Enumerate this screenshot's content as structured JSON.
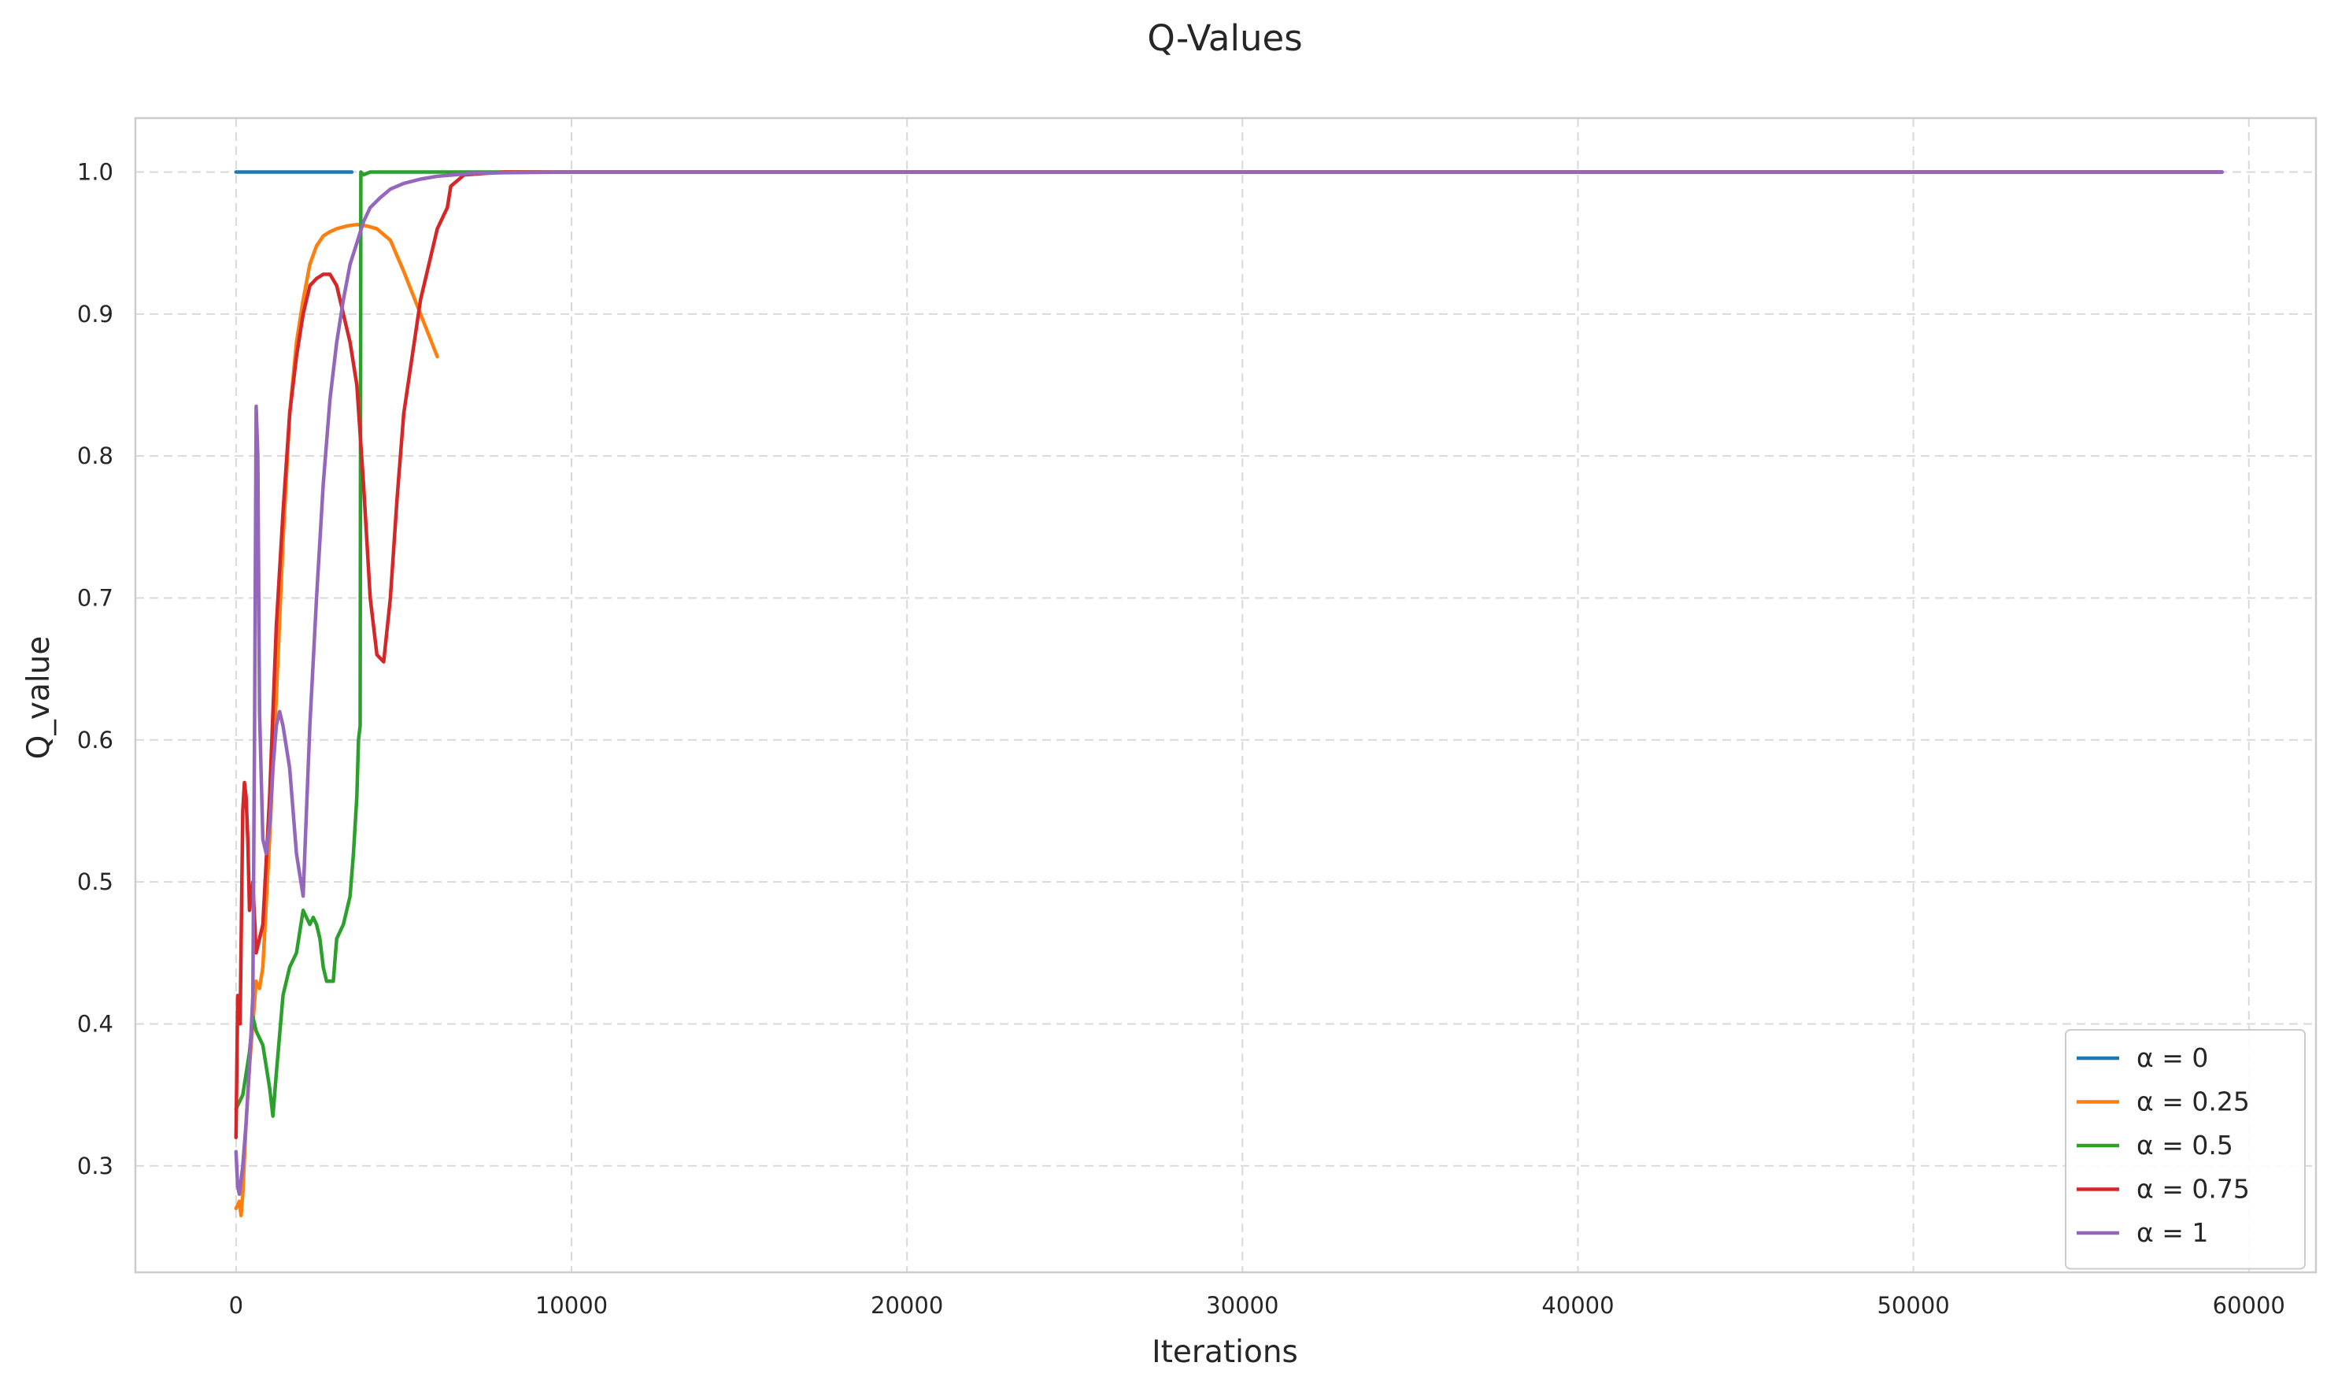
{
  "chart_data": {
    "type": "line",
    "title": "Q-Values",
    "xlabel": "Iterations",
    "ylabel": "Q_value",
    "xlim": [
      -3000,
      62000
    ],
    "ylim": [
      0.225,
      1.038
    ],
    "xticks": [
      0,
      10000,
      20000,
      30000,
      40000,
      50000,
      60000
    ],
    "xtick_labels": [
      "0",
      "10000",
      "20000",
      "30000",
      "40000",
      "50000",
      "60000"
    ],
    "yticks": [
      0.3,
      0.4,
      0.5,
      0.6,
      0.7,
      0.8,
      0.9,
      1.0
    ],
    "ytick_labels": [
      "0.3",
      "0.4",
      "0.5",
      "0.6",
      "0.7",
      "0.8",
      "0.9",
      "1.0"
    ],
    "grid": true,
    "legend_position": "bottom-right",
    "series": [
      {
        "name": "α = 0",
        "color": "#1f77b4",
        "x": [
          0,
          3450
        ],
        "y": [
          1.0,
          1.0
        ]
      },
      {
        "name": "α = 0.25",
        "color": "#ff7f0e",
        "x": [
          0,
          100,
          150,
          200,
          300,
          400,
          500,
          600,
          700,
          800,
          1000,
          1200,
          1400,
          1600,
          1800,
          2000,
          2200,
          2400,
          2600,
          2800,
          3000,
          3300,
          3600,
          3900,
          4200,
          4600,
          5000,
          5500,
          6000
        ],
        "y": [
          0.27,
          0.275,
          0.265,
          0.28,
          0.33,
          0.37,
          0.4,
          0.43,
          0.425,
          0.44,
          0.53,
          0.63,
          0.74,
          0.83,
          0.88,
          0.91,
          0.935,
          0.948,
          0.955,
          0.958,
          0.96,
          0.962,
          0.963,
          0.962,
          0.96,
          0.952,
          0.93,
          0.9,
          0.87
        ]
      },
      {
        "name": "α = 0.5",
        "color": "#2ca02c",
        "x": [
          0,
          200,
          400,
          500,
          600,
          800,
          1000,
          1100,
          1200,
          1400,
          1600,
          1800,
          2000,
          2100,
          2200,
          2300,
          2400,
          2500,
          2600,
          2700,
          2900,
          3000,
          3200,
          3400,
          3500,
          3600,
          3650,
          3700,
          3720,
          3800,
          4000,
          6000,
          59200
        ],
        "y": [
          0.34,
          0.35,
          0.38,
          0.405,
          0.395,
          0.385,
          0.355,
          0.335,
          0.365,
          0.42,
          0.44,
          0.45,
          0.48,
          0.475,
          0.47,
          0.475,
          0.47,
          0.46,
          0.44,
          0.43,
          0.43,
          0.46,
          0.47,
          0.49,
          0.52,
          0.56,
          0.6,
          0.61,
          1.0,
          0.998,
          1.0,
          1.0,
          1.0
        ]
      },
      {
        "name": "α = 0.75",
        "color": "#d62728",
        "x": [
          0,
          50,
          120,
          200,
          250,
          300,
          350,
          400,
          500,
          600,
          700,
          800,
          1000,
          1200,
          1400,
          1600,
          1800,
          2000,
          2200,
          2400,
          2600,
          2800,
          3000,
          3200,
          3400,
          3600,
          3800,
          4000,
          4200,
          4400,
          4600,
          4800,
          5000,
          5500,
          6000,
          6300,
          6400,
          6800,
          8000,
          10000,
          20000,
          59200
        ],
        "y": [
          0.32,
          0.42,
          0.4,
          0.55,
          0.57,
          0.56,
          0.53,
          0.48,
          0.5,
          0.45,
          0.46,
          0.47,
          0.56,
          0.68,
          0.76,
          0.83,
          0.87,
          0.9,
          0.92,
          0.925,
          0.928,
          0.928,
          0.92,
          0.9,
          0.88,
          0.85,
          0.78,
          0.7,
          0.66,
          0.655,
          0.7,
          0.77,
          0.83,
          0.91,
          0.96,
          0.975,
          0.99,
          0.998,
          1.0,
          1.0,
          1.0,
          1.0
        ]
      },
      {
        "name": "α = 1",
        "color": "#9467bd",
        "x": [
          0,
          50,
          100,
          200,
          300,
          400,
          500,
          550,
          600,
          650,
          700,
          800,
          900,
          1000,
          1100,
          1200,
          1300,
          1400,
          1600,
          1800,
          2000,
          2100,
          2200,
          2400,
          2600,
          2800,
          3000,
          3200,
          3400,
          3600,
          3800,
          4000,
          4300,
          4600,
          5000,
          5500,
          6000,
          7000,
          8000,
          10000,
          15000,
          20000,
          59200
        ],
        "y": [
          0.31,
          0.285,
          0.28,
          0.3,
          0.33,
          0.37,
          0.42,
          0.6,
          0.835,
          0.8,
          0.62,
          0.53,
          0.52,
          0.54,
          0.58,
          0.61,
          0.62,
          0.61,
          0.58,
          0.52,
          0.49,
          0.55,
          0.61,
          0.7,
          0.78,
          0.84,
          0.88,
          0.91,
          0.935,
          0.95,
          0.965,
          0.975,
          0.982,
          0.988,
          0.992,
          0.995,
          0.997,
          0.999,
          0.9995,
          1.0,
          1.0,
          1.0,
          1.0
        ]
      }
    ]
  }
}
